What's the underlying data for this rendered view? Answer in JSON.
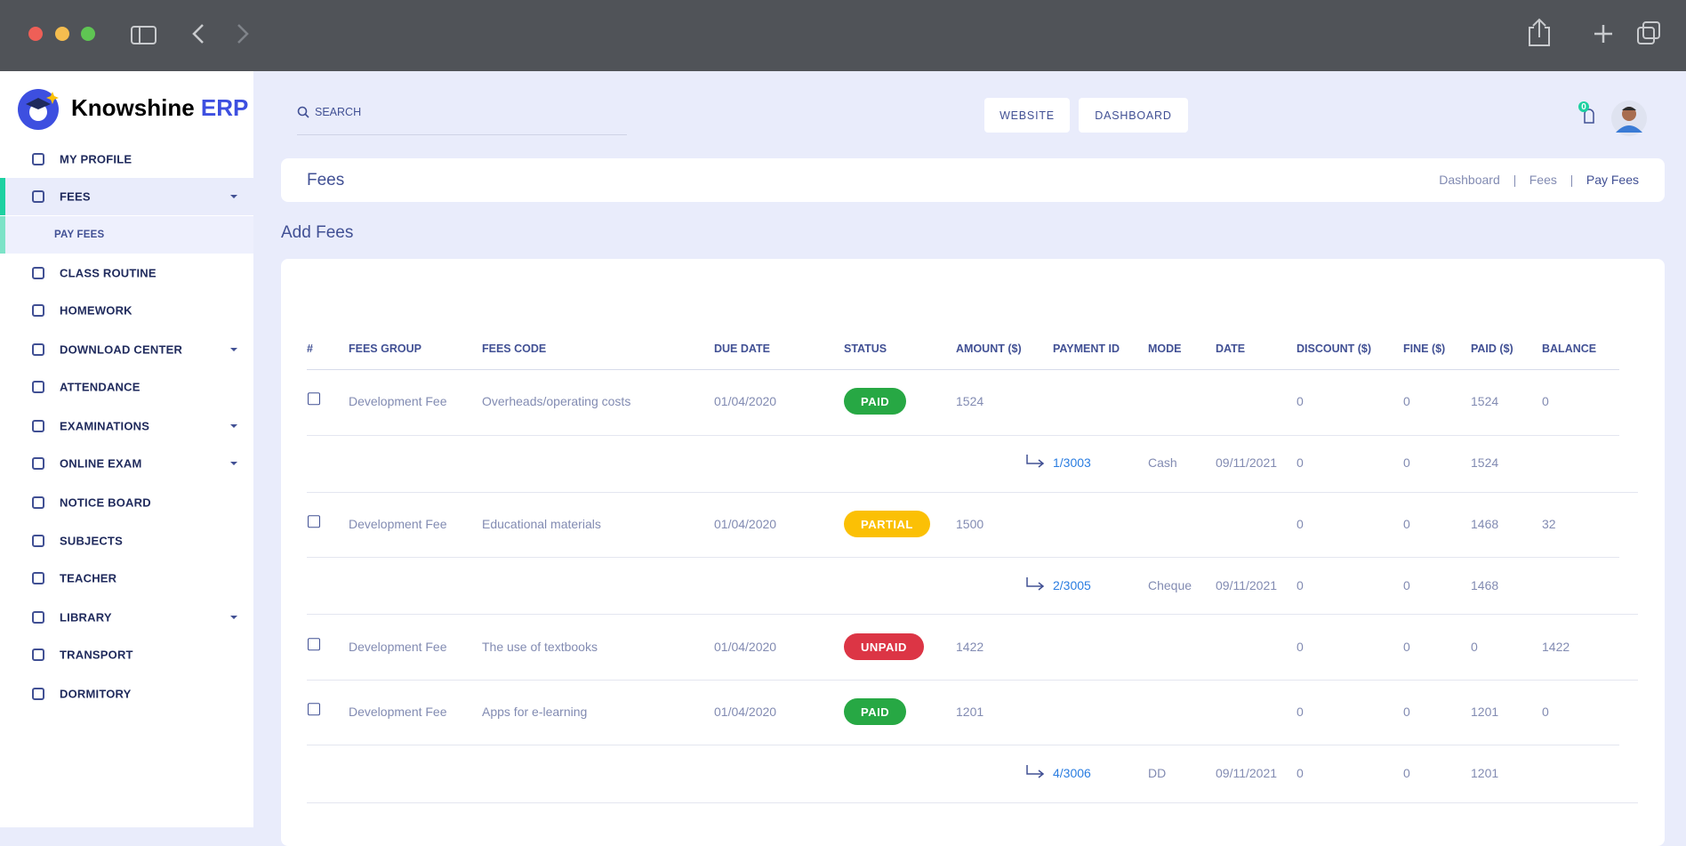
{
  "brand": {
    "name": "Knowshine",
    "suffix": "ERP"
  },
  "nav": [
    {
      "label": "MY PROFILE",
      "dropdown": false
    },
    {
      "label": "FEES",
      "dropdown": true,
      "active": true
    },
    {
      "label": "PAY FEES",
      "sub": true
    },
    {
      "label": "CLASS ROUTINE",
      "dropdown": false
    },
    {
      "label": "HOMEWORK",
      "dropdown": false
    },
    {
      "label": "DOWNLOAD CENTER",
      "dropdown": true
    },
    {
      "label": "ATTENDANCE",
      "dropdown": false
    },
    {
      "label": "EXAMINATIONS",
      "dropdown": true
    },
    {
      "label": "ONLINE EXAM",
      "dropdown": true
    },
    {
      "label": "NOTICE BOARD",
      "dropdown": false
    },
    {
      "label": "SUBJECTS",
      "dropdown": false
    },
    {
      "label": "TEACHER",
      "dropdown": false
    },
    {
      "label": "LIBRARY",
      "dropdown": true
    },
    {
      "label": "TRANSPORT",
      "dropdown": false
    },
    {
      "label": "DORMITORY",
      "dropdown": false
    }
  ],
  "topbar": {
    "search_placeholder": "SEARCH",
    "buttons": [
      "WEBSITE",
      "DASHBOARD"
    ],
    "notification_count": 0
  },
  "page_header": {
    "title": "Fees",
    "breadcrumbs": [
      "Dashboard",
      "Fees",
      "Pay Fees"
    ]
  },
  "section_title": "Add Fees",
  "table": {
    "columns": [
      "#",
      "FEES GROUP",
      "FEES CODE",
      "DUE DATE",
      "STATUS",
      "AMOUNT ($)",
      "PAYMENT ID",
      "MODE",
      "DATE",
      "DISCOUNT ($)",
      "FINE ($)",
      "PAID ($)",
      "BALANCE"
    ],
    "rows": [
      {
        "kind": "fee",
        "group": "Development Fee",
        "code": "Overheads/operating costs",
        "due_date": "01/04/2020",
        "status": "PAID",
        "status_color": "#27a844",
        "amount": 1524,
        "discount": 0,
        "fine": 0,
        "paid": 1524,
        "balance": 0
      },
      {
        "kind": "payment",
        "payment_id": "1/3003",
        "mode": "Cash",
        "date": "09/11/2021",
        "discount": 0,
        "fine": 0,
        "paid": 1524
      },
      {
        "kind": "fee",
        "group": "Development Fee",
        "code": "Educational materials",
        "due_date": "01/04/2020",
        "status": "PARTIAL",
        "status_color": "#fbc005",
        "amount": 1500,
        "discount": 0,
        "fine": 0,
        "paid": 1468,
        "balance": 32
      },
      {
        "kind": "payment",
        "payment_id": "2/3005",
        "mode": "Cheque",
        "date": "09/11/2021",
        "discount": 0,
        "fine": 0,
        "paid": 1468
      },
      {
        "kind": "fee",
        "group": "Development Fee",
        "code": "The use of textbooks",
        "due_date": "01/04/2020",
        "status": "UNPAID",
        "status_color": "#dc3545",
        "amount": 1422,
        "discount": 0,
        "fine": 0,
        "paid": 0,
        "balance": 1422
      },
      {
        "kind": "fee",
        "group": "Development Fee",
        "code": "Apps for e-learning",
        "due_date": "01/04/2020",
        "status": "PAID",
        "status_color": "#27a844",
        "amount": 1201,
        "discount": 0,
        "fine": 0,
        "paid": 1201,
        "balance": 0
      },
      {
        "kind": "payment",
        "payment_id": "4/3006",
        "mode": "DD",
        "date": "09/11/2021",
        "discount": 0,
        "fine": 0,
        "paid": 1201
      }
    ]
  }
}
